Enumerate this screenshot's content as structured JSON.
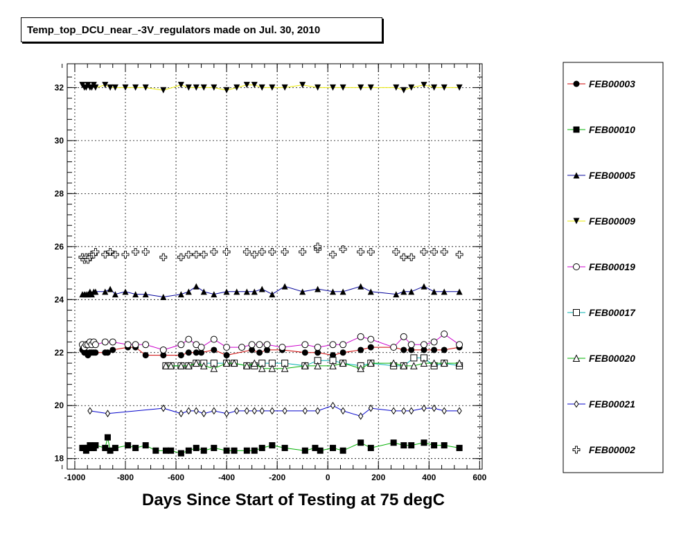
{
  "chart_data": {
    "type": "scatter",
    "title": "Temp_top_DCU_near_-3V_regulators made on Jul. 30, 2010",
    "xlabel": "Days Since Start of Testing at 75 degC",
    "ylabel": "",
    "xlim": [
      -1030,
      610
    ],
    "ylim": [
      17.6,
      32.9
    ],
    "xticks": [
      -1000,
      -800,
      -600,
      -400,
      -200,
      0,
      200,
      400,
      600
    ],
    "yticks": [
      18,
      20,
      22,
      24,
      26,
      28,
      30,
      32
    ],
    "grid": true,
    "legend_position": "right",
    "series": [
      {
        "name": "FEB00003",
        "marker": "circle-filled",
        "color": "#cc0000",
        "x": [
          -970,
          -962,
          -955,
          -948,
          -940,
          -933,
          -925,
          -918,
          -880,
          -870,
          -850,
          -790,
          -760,
          -720,
          -650,
          -580,
          -550,
          -520,
          -500,
          -450,
          -400,
          -300,
          -270,
          -240,
          -180,
          -90,
          -40,
          20,
          60,
          130,
          170,
          260,
          300,
          330,
          380,
          420,
          460,
          520
        ],
        "y": [
          22.1,
          22.0,
          22.0,
          21.9,
          22.0,
          22.0,
          22.0,
          22.0,
          22.0,
          22.0,
          22.1,
          22.2,
          22.2,
          21.9,
          21.9,
          21.9,
          22.0,
          22.0,
          22.0,
          22.1,
          21.9,
          22.1,
          22.0,
          22.1,
          22.1,
          22.0,
          22.0,
          21.9,
          22.0,
          22.1,
          22.2,
          22.2,
          22.1,
          22.1,
          22.1,
          22.1,
          22.1,
          22.2
        ]
      },
      {
        "name": "FEB00010",
        "marker": "square-filled",
        "color": "#00b000",
        "x": [
          -970,
          -962,
          -955,
          -948,
          -940,
          -933,
          -925,
          -918,
          -880,
          -870,
          -860,
          -840,
          -790,
          -760,
          -720,
          -680,
          -640,
          -620,
          -580,
          -550,
          -520,
          -490,
          -450,
          -400,
          -370,
          -320,
          -290,
          -260,
          -220,
          -170,
          -90,
          -50,
          -30,
          20,
          60,
          130,
          170,
          260,
          300,
          330,
          380,
          420,
          460,
          520
        ],
        "y": [
          18.4,
          18.4,
          18.3,
          18.4,
          18.5,
          18.4,
          18.4,
          18.5,
          18.4,
          18.8,
          18.3,
          18.4,
          18.5,
          18.4,
          18.5,
          18.3,
          18.3,
          18.3,
          18.2,
          18.3,
          18.4,
          18.3,
          18.4,
          18.3,
          18.3,
          18.3,
          18.3,
          18.4,
          18.5,
          18.4,
          18.3,
          18.4,
          18.3,
          18.4,
          18.3,
          18.6,
          18.4,
          18.6,
          18.5,
          18.5,
          18.6,
          18.5,
          18.5,
          18.4
        ]
      },
      {
        "name": "FEB00005",
        "marker": "triangle-up-filled",
        "color": "#000099",
        "x": [
          -970,
          -962,
          -955,
          -948,
          -940,
          -933,
          -925,
          -918,
          -880,
          -860,
          -840,
          -800,
          -760,
          -720,
          -650,
          -580,
          -550,
          -520,
          -490,
          -450,
          -400,
          -360,
          -320,
          -290,
          -260,
          -220,
          -170,
          -100,
          -40,
          20,
          60,
          130,
          170,
          270,
          300,
          330,
          380,
          420,
          460,
          520
        ],
        "y": [
          24.2,
          24.2,
          24.2,
          24.2,
          24.3,
          24.2,
          24.3,
          24.3,
          24.3,
          24.4,
          24.2,
          24.3,
          24.2,
          24.2,
          24.1,
          24.2,
          24.3,
          24.5,
          24.3,
          24.2,
          24.3,
          24.3,
          24.3,
          24.3,
          24.4,
          24.2,
          24.5,
          24.3,
          24.4,
          24.3,
          24.3,
          24.5,
          24.3,
          24.2,
          24.3,
          24.3,
          24.5,
          24.3,
          24.3,
          24.3
        ]
      },
      {
        "name": "FEB00009",
        "marker": "triangle-down-filled",
        "color": "#e8e800",
        "x": [
          -970,
          -962,
          -955,
          -948,
          -940,
          -933,
          -925,
          -918,
          -880,
          -860,
          -840,
          -800,
          -760,
          -720,
          -650,
          -580,
          -550,
          -520,
          -490,
          -450,
          -400,
          -360,
          -320,
          -290,
          -260,
          -220,
          -170,
          -100,
          -40,
          20,
          60,
          130,
          170,
          270,
          300,
          330,
          380,
          420,
          460,
          520
        ],
        "y": [
          32.1,
          32.0,
          32.0,
          32.1,
          32.0,
          32.0,
          32.1,
          32.0,
          32.1,
          32.0,
          32.0,
          32.0,
          32.0,
          32.0,
          31.9,
          32.1,
          32.0,
          32.0,
          32.0,
          32.0,
          31.9,
          32.0,
          32.1,
          32.1,
          32.0,
          32.0,
          32.0,
          32.1,
          32.0,
          32.0,
          32.0,
          32.0,
          32.0,
          32.0,
          31.9,
          32.0,
          32.1,
          32.0,
          32.0,
          32.0
        ]
      },
      {
        "name": "FEB00019",
        "marker": "circle-open",
        "color": "#cc00cc",
        "x": [
          -970,
          -962,
          -955,
          -948,
          -940,
          -933,
          -925,
          -918,
          -880,
          -850,
          -790,
          -760,
          -720,
          -650,
          -580,
          -550,
          -520,
          -500,
          -450,
          -400,
          -340,
          -300,
          -270,
          -240,
          -180,
          -90,
          -40,
          20,
          60,
          130,
          170,
          260,
          300,
          330,
          380,
          420,
          460,
          520
        ],
        "y": [
          22.3,
          22.2,
          22.3,
          22.3,
          22.4,
          22.3,
          22.4,
          22.3,
          22.4,
          22.4,
          22.3,
          22.3,
          22.3,
          22.1,
          22.3,
          22.5,
          22.3,
          22.2,
          22.5,
          22.2,
          22.2,
          22.3,
          22.3,
          22.3,
          22.2,
          22.3,
          22.2,
          22.3,
          22.3,
          22.6,
          22.5,
          22.2,
          22.6,
          22.3,
          22.3,
          22.4,
          22.7,
          22.3
        ]
      },
      {
        "name": "FEB00017",
        "marker": "square-open",
        "color": "#00b0b0",
        "x": [
          -640,
          -620,
          -580,
          -550,
          -520,
          -490,
          -450,
          -400,
          -370,
          -320,
          -290,
          -260,
          -220,
          -170,
          -90,
          -40,
          20,
          60,
          130,
          170,
          260,
          300,
          340,
          380,
          420,
          460,
          520
        ],
        "y": [
          21.5,
          21.5,
          21.5,
          21.5,
          21.6,
          21.6,
          21.6,
          21.6,
          21.6,
          21.5,
          21.5,
          21.6,
          21.6,
          21.6,
          21.5,
          21.7,
          21.7,
          21.6,
          21.5,
          21.6,
          21.5,
          21.5,
          21.8,
          21.8,
          21.5,
          21.6,
          21.5
        ]
      },
      {
        "name": "FEB00020",
        "marker": "triangle-up-open",
        "color": "#00b000",
        "x": [
          -640,
          -620,
          -580,
          -550,
          -520,
          -490,
          -450,
          -400,
          -370,
          -320,
          -290,
          -260,
          -220,
          -170,
          -90,
          -40,
          20,
          60,
          130,
          170,
          260,
          300,
          340,
          380,
          420,
          460,
          520
        ],
        "y": [
          21.5,
          21.5,
          21.5,
          21.5,
          21.6,
          21.5,
          21.4,
          21.6,
          21.6,
          21.5,
          21.6,
          21.4,
          21.4,
          21.4,
          21.5,
          21.5,
          21.5,
          21.6,
          21.4,
          21.6,
          21.6,
          21.5,
          21.5,
          21.6,
          21.6,
          21.6,
          21.6
        ]
      },
      {
        "name": "FEB00021",
        "marker": "diamond-open",
        "color": "#0000cc",
        "x": [
          -940,
          -870,
          -650,
          -580,
          -550,
          -520,
          -490,
          -450,
          -400,
          -360,
          -320,
          -290,
          -260,
          -220,
          -170,
          -90,
          -40,
          20,
          60,
          130,
          170,
          260,
          300,
          330,
          380,
          420,
          460,
          520
        ],
        "y": [
          19.8,
          19.7,
          19.9,
          19.7,
          19.8,
          19.8,
          19.7,
          19.8,
          19.7,
          19.8,
          19.8,
          19.8,
          19.8,
          19.8,
          19.8,
          19.8,
          19.8,
          20.0,
          19.8,
          19.6,
          19.9,
          19.8,
          19.8,
          19.8,
          19.9,
          19.9,
          19.8,
          19.8
        ]
      },
      {
        "name": "FEB00002",
        "marker": "cross-open",
        "color": "#000000",
        "x": [
          -970,
          -962,
          -955,
          -948,
          -940,
          -933,
          -925,
          -918,
          -880,
          -860,
          -840,
          -800,
          -760,
          -720,
          -650,
          -580,
          -550,
          -520,
          -490,
          -450,
          -400,
          -320,
          -290,
          -260,
          -220,
          -170,
          -100,
          -40,
          -40,
          20,
          60,
          130,
          170,
          270,
          300,
          330,
          380,
          420,
          460,
          520
        ],
        "y": [
          25.6,
          25.5,
          25.6,
          25.5,
          25.6,
          25.7,
          25.7,
          25.8,
          25.7,
          25.8,
          25.7,
          25.7,
          25.8,
          25.8,
          25.6,
          25.6,
          25.7,
          25.7,
          25.7,
          25.8,
          25.8,
          25.8,
          25.7,
          25.8,
          25.8,
          25.8,
          25.8,
          25.9,
          26.0,
          25.7,
          25.9,
          25.8,
          25.8,
          25.8,
          25.6,
          25.6,
          25.8,
          25.8,
          25.8,
          25.7
        ]
      }
    ]
  }
}
